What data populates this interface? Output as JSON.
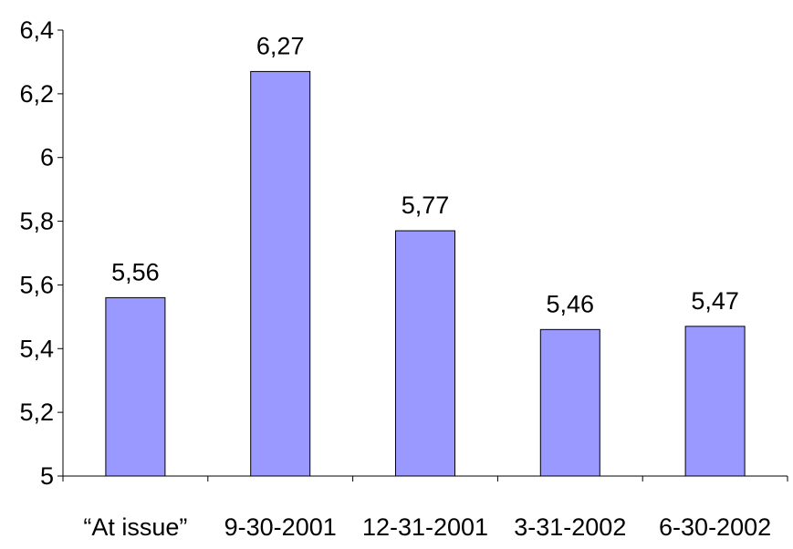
{
  "chart_data": {
    "type": "bar",
    "categories": [
      "“At issue”",
      "9-30-2001",
      "12-31-2001",
      "3-31-2002",
      "6-30-2002"
    ],
    "values": [
      5.56,
      6.27,
      5.77,
      5.46,
      5.47
    ],
    "value_labels": [
      "5,56",
      "6,27",
      "5,77",
      "5,46",
      "5,47"
    ],
    "title": "",
    "xlabel": "",
    "ylabel": "",
    "ylim": [
      5,
      6.4
    ],
    "yticks": [
      5,
      5.2,
      5.4,
      5.6,
      5.8,
      6,
      6.2,
      6.4
    ],
    "ytick_labels": [
      "5",
      "5,2",
      "5,4",
      "5,6",
      "5,8",
      "6",
      "6,2",
      "6,4"
    ],
    "grid": false,
    "legend": "none",
    "bar_color": "#9999ff",
    "bar_edge_color": "#000000"
  }
}
